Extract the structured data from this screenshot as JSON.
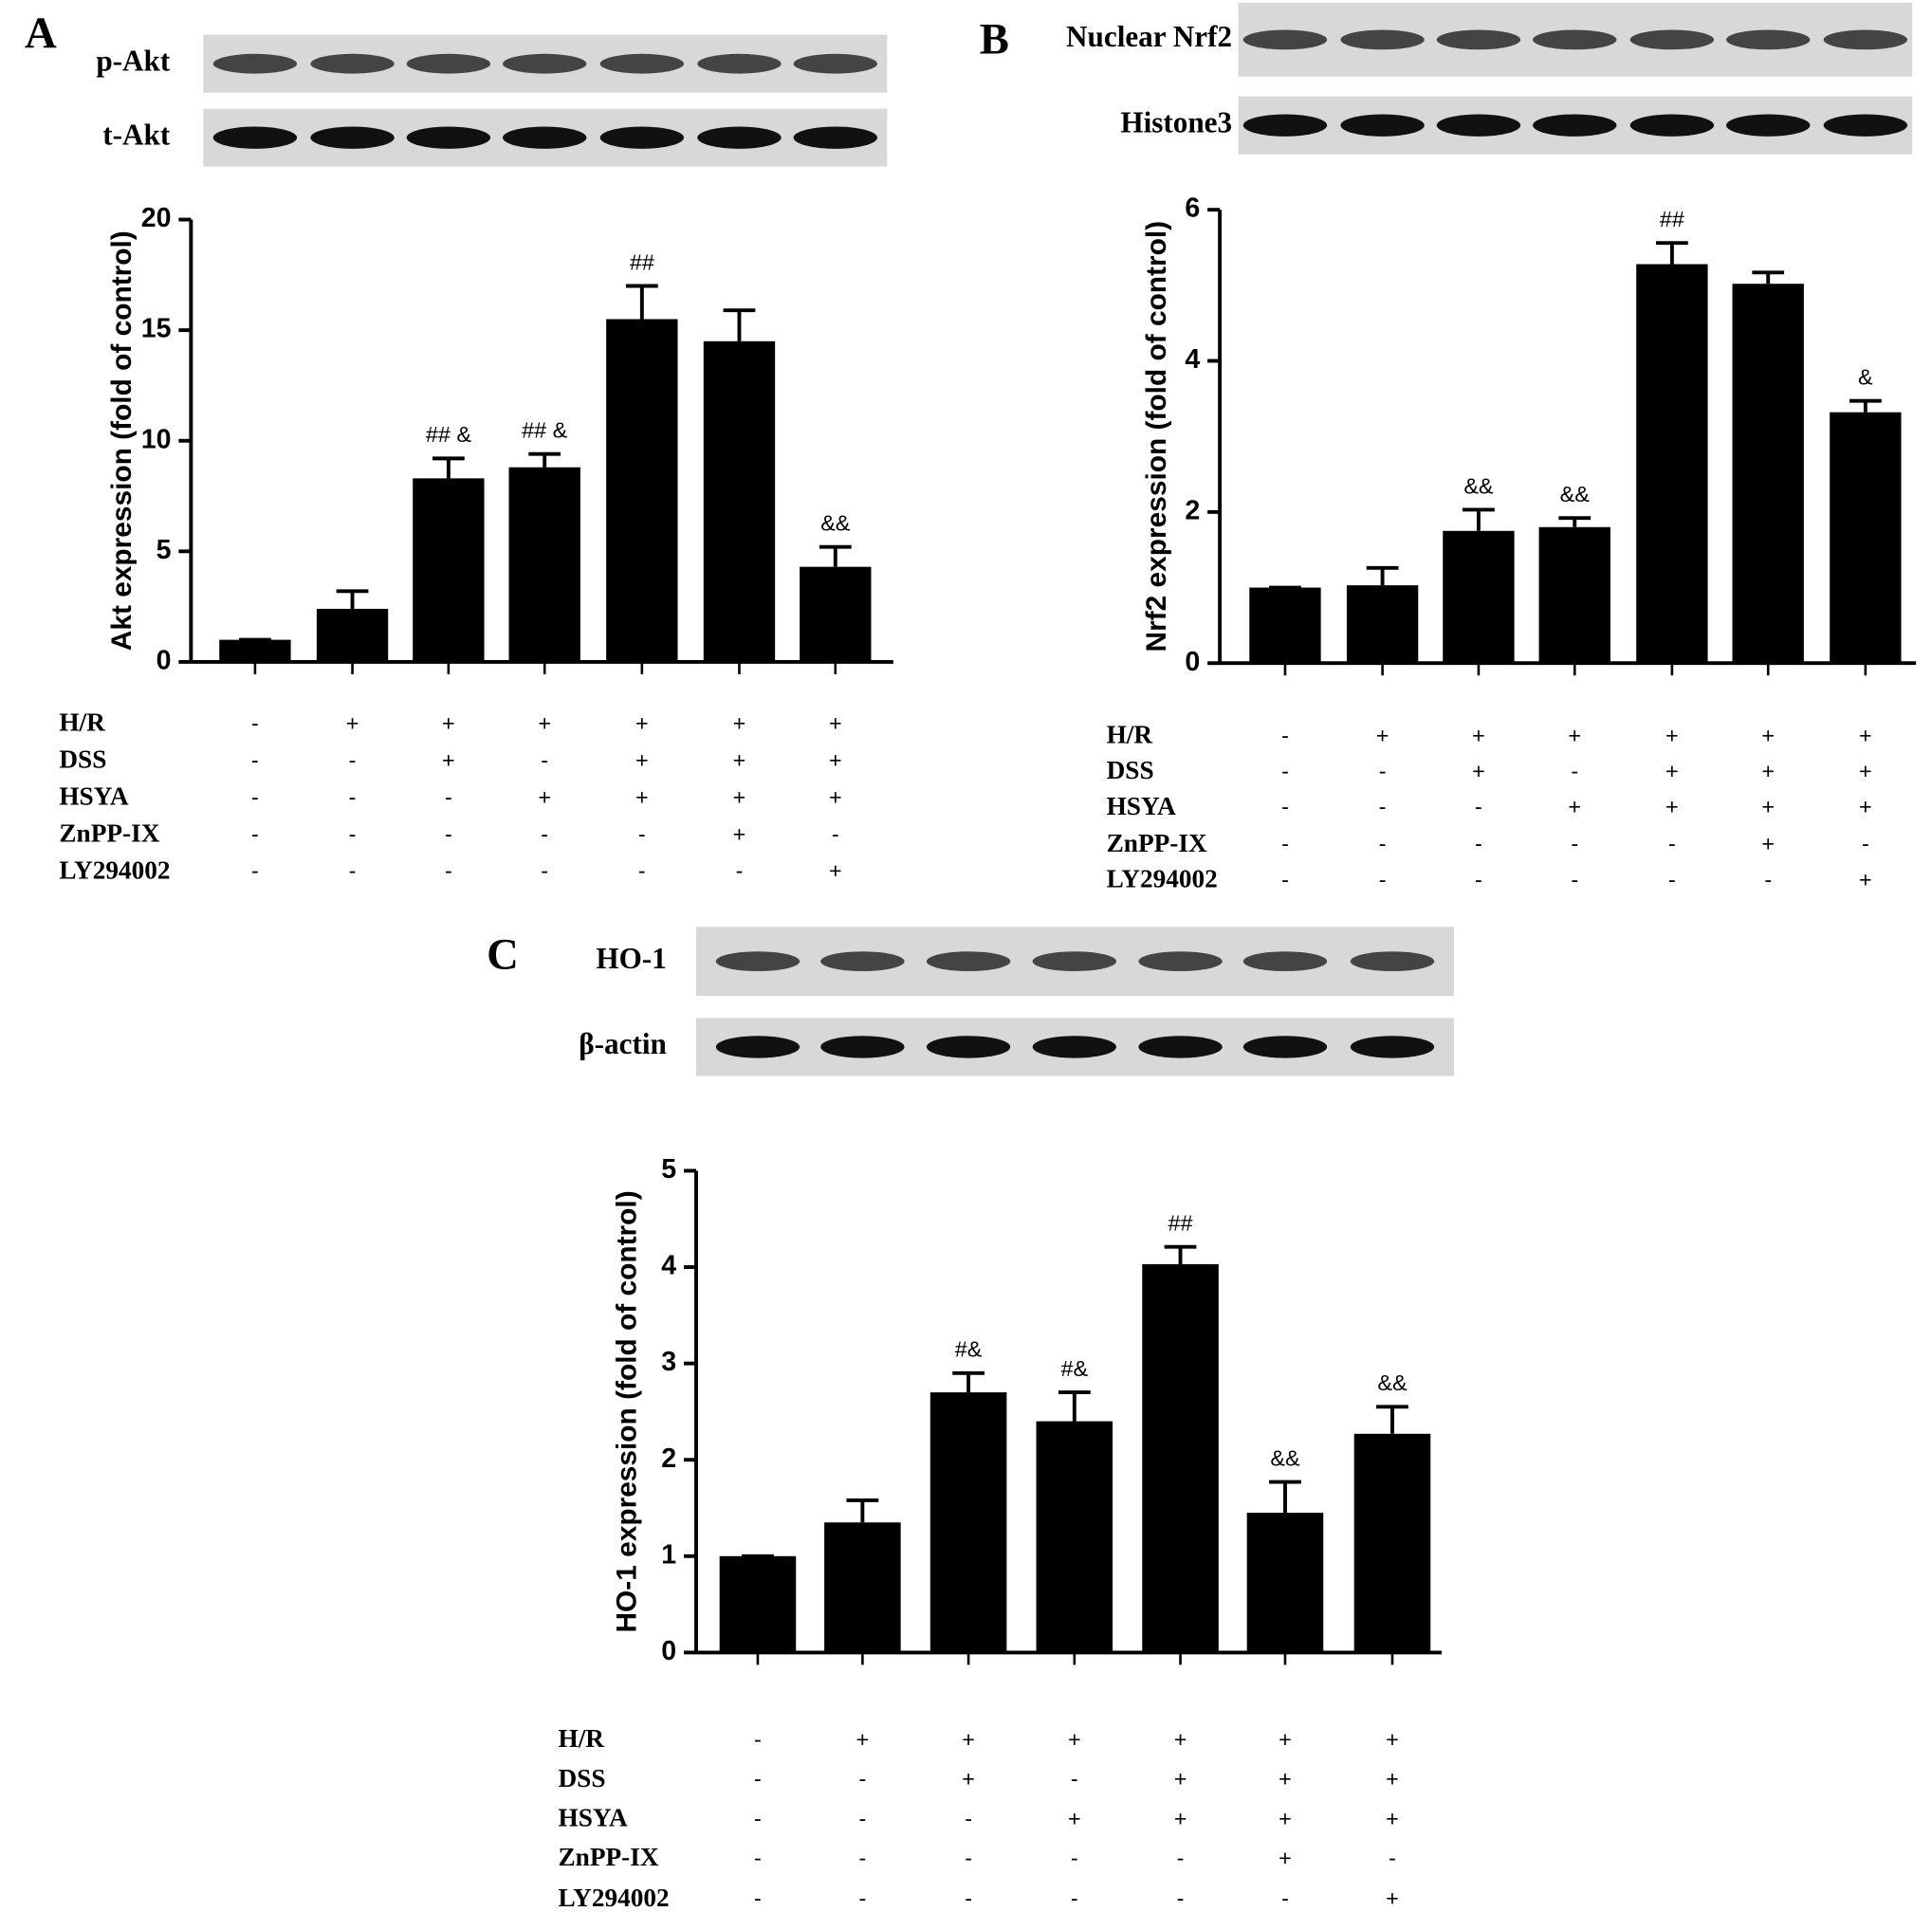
{
  "chart_data": [
    {
      "type": "bar",
      "panel": "A",
      "blots": [
        "p-Akt",
        "t-Akt"
      ],
      "ylabel": "Akt expression (fold of control)",
      "ylim": [
        0,
        20
      ],
      "yticks": [
        0,
        5,
        10,
        15,
        20
      ],
      "color": "#000000",
      "values": [
        1,
        2.4,
        8.3,
        8.8,
        15.5,
        14.5,
        4.3
      ],
      "errors": [
        0,
        0.8,
        0.9,
        0.6,
        1.5,
        1.4,
        0.9
      ],
      "annotations": [
        null,
        null,
        "## &",
        "## &",
        "##",
        null,
        "&&"
      ],
      "treatments": [
        {
          "name": "H/R",
          "values": [
            "-",
            "+",
            "+",
            "+",
            "+",
            "+",
            "+"
          ]
        },
        {
          "name": "DSS",
          "values": [
            "-",
            "-",
            "+",
            "-",
            "+",
            "+",
            "+"
          ]
        },
        {
          "name": "HSYA",
          "values": [
            "-",
            "-",
            "-",
            "+",
            "+",
            "+",
            "+"
          ]
        },
        {
          "name": "ZnPP-IX",
          "values": [
            "-",
            "-",
            "-",
            "-",
            "-",
            "+",
            "-"
          ]
        },
        {
          "name": "LY294002",
          "values": [
            "-",
            "-",
            "-",
            "-",
            "-",
            "-",
            "+"
          ]
        }
      ]
    },
    {
      "type": "bar",
      "panel": "B",
      "blots": [
        "Nuclear Nrf2",
        "Histone3"
      ],
      "ylabel": "Nrf2 expression (fold of control)",
      "ylim": [
        0,
        6
      ],
      "yticks": [
        0,
        2,
        4,
        6
      ],
      "color": "#000000",
      "values": [
        1,
        1.03,
        1.75,
        1.8,
        5.28,
        5.02,
        3.32
      ],
      "errors": [
        0,
        0.23,
        0.28,
        0.12,
        0.28,
        0.15,
        0.15
      ],
      "annotations": [
        null,
        null,
        "&&",
        "&&",
        "##",
        null,
        "&"
      ],
      "treatments": [
        {
          "name": "H/R",
          "values": [
            "-",
            "+",
            "+",
            "+",
            "+",
            "+",
            "+"
          ]
        },
        {
          "name": "DSS",
          "values": [
            "-",
            "-",
            "+",
            "-",
            "+",
            "+",
            "+"
          ]
        },
        {
          "name": "HSYA",
          "values": [
            "-",
            "-",
            "-",
            "+",
            "+",
            "+",
            "+"
          ]
        },
        {
          "name": "ZnPP-IX",
          "values": [
            "-",
            "-",
            "-",
            "-",
            "-",
            "+",
            "-"
          ]
        },
        {
          "name": "LY294002",
          "values": [
            "-",
            "-",
            "-",
            "-",
            "-",
            "-",
            "+"
          ]
        }
      ]
    },
    {
      "type": "bar",
      "panel": "C",
      "blots": [
        "HO-1",
        "β-actin"
      ],
      "ylabel": "HO-1 expression (fold of control)",
      "ylim": [
        0,
        5
      ],
      "yticks": [
        0,
        1,
        2,
        3,
        4,
        5
      ],
      "color": "#000000",
      "values": [
        1,
        1.35,
        2.7,
        2.4,
        4.03,
        1.45,
        2.27
      ],
      "errors": [
        0,
        0.23,
        0.2,
        0.3,
        0.18,
        0.32,
        0.28
      ],
      "annotations": [
        null,
        null,
        "#&",
        "#&",
        "##",
        "&&",
        "&&"
      ],
      "treatments": [
        {
          "name": "H/R",
          "values": [
            "-",
            "+",
            "+",
            "+",
            "+",
            "+",
            "+"
          ]
        },
        {
          "name": "DSS",
          "values": [
            "-",
            "-",
            "+",
            "-",
            "+",
            "+",
            "+"
          ]
        },
        {
          "name": "HSYA",
          "values": [
            "-",
            "-",
            "-",
            "+",
            "+",
            "+",
            "+"
          ]
        },
        {
          "name": "ZnPP-IX",
          "values": [
            "-",
            "-",
            "-",
            "-",
            "-",
            "+",
            "-"
          ]
        },
        {
          "name": "LY294002",
          "values": [
            "-",
            "-",
            "-",
            "-",
            "-",
            "-",
            "+"
          ]
        }
      ]
    }
  ]
}
